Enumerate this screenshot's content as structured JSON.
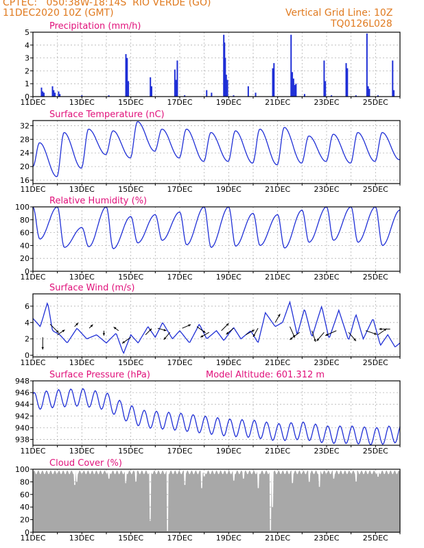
{
  "header": {
    "line1": "CPTEC:   050:38W-18:14S  RIO VERDE (GO)",
    "line2": "11DEC2020 10Z (GMT)",
    "grid_note": "Vertical Grid Line: 10Z",
    "code": "TQ0126L028"
  },
  "colors": {
    "header": "#e07a1f",
    "title": "#e0107a",
    "series": "#1f2fd6",
    "cloud": "#a8a8a8",
    "grid": "#b0b0b0"
  },
  "chart_data": [
    {
      "type": "bar",
      "title": "Precipitation (mm/h)",
      "ylim": [
        0,
        5
      ],
      "yticks": [
        0,
        1,
        2,
        3,
        4,
        5
      ],
      "xticks": [
        "11DEC",
        "13DEC",
        "15DEC",
        "17DEC",
        "19DEC",
        "21DEC",
        "23DEC",
        "25DEC"
      ],
      "x_days": [
        11,
        26
      ],
      "values": [
        {
          "day": 11.35,
          "v": 0.7
        },
        {
          "day": 11.4,
          "v": 0.4
        },
        {
          "day": 11.45,
          "v": 0.3
        },
        {
          "day": 11.8,
          "v": 0.8
        },
        {
          "day": 11.85,
          "v": 0.5
        },
        {
          "day": 11.9,
          "v": 0.3
        },
        {
          "day": 12.05,
          "v": 0.4
        },
        {
          "day": 12.1,
          "v": 0.2
        },
        {
          "day": 13.0,
          "v": 0.1
        },
        {
          "day": 14.1,
          "v": 0.1
        },
        {
          "day": 14.8,
          "v": 3.3
        },
        {
          "day": 14.85,
          "v": 3.0
        },
        {
          "day": 14.9,
          "v": 1.2
        },
        {
          "day": 15.8,
          "v": 1.5
        },
        {
          "day": 15.85,
          "v": 0.8
        },
        {
          "day": 16.8,
          "v": 2.1
        },
        {
          "day": 16.85,
          "v": 1.3
        },
        {
          "day": 16.9,
          "v": 2.8
        },
        {
          "day": 17.2,
          "v": 0.1
        },
        {
          "day": 18.1,
          "v": 0.5
        },
        {
          "day": 18.3,
          "v": 0.3
        },
        {
          "day": 18.8,
          "v": 4.8
        },
        {
          "day": 18.83,
          "v": 4.2
        },
        {
          "day": 18.86,
          "v": 3.0
        },
        {
          "day": 18.9,
          "v": 1.7
        },
        {
          "day": 18.95,
          "v": 1.3
        },
        {
          "day": 19.2,
          "v": 0.1
        },
        {
          "day": 19.8,
          "v": 0.8
        },
        {
          "day": 20.1,
          "v": 0.3
        },
        {
          "day": 20.8,
          "v": 2.2
        },
        {
          "day": 20.85,
          "v": 2.6
        },
        {
          "day": 21.55,
          "v": 4.8
        },
        {
          "day": 21.6,
          "v": 1.9
        },
        {
          "day": 21.65,
          "v": 1.4
        },
        {
          "day": 21.7,
          "v": 0.9
        },
        {
          "day": 21.75,
          "v": 1.0
        },
        {
          "day": 22.1,
          "v": 0.2
        },
        {
          "day": 22.9,
          "v": 2.8
        },
        {
          "day": 22.95,
          "v": 1.2
        },
        {
          "day": 23.2,
          "v": 0.1
        },
        {
          "day": 23.8,
          "v": 2.6
        },
        {
          "day": 23.85,
          "v": 2.2
        },
        {
          "day": 24.2,
          "v": 0.1
        },
        {
          "day": 24.65,
          "v": 4.9
        },
        {
          "day": 24.7,
          "v": 0.8
        },
        {
          "day": 24.75,
          "v": 0.6
        },
        {
          "day": 25.1,
          "v": 0.1
        },
        {
          "day": 25.7,
          "v": 2.8
        },
        {
          "day": 25.75,
          "v": 0.5
        }
      ]
    },
    {
      "type": "line",
      "title": "Surface Temperature (nC)",
      "ylim": [
        15,
        33.5
      ],
      "yticks": [
        16,
        20,
        24,
        28,
        32
      ],
      "xticks": [
        "11DEC",
        "13DEC",
        "15DEC",
        "17DEC",
        "19DEC",
        "21DEC",
        "23DEC",
        "25DEC"
      ],
      "min_hour": 9.5,
      "max_hour": 16.5,
      "daily": [
        {
          "min": 17.0,
          "max": 27.0
        },
        {
          "min": 19.5,
          "max": 30.0
        },
        {
          "min": 23.5,
          "max": 31.0
        },
        {
          "min": 22.5,
          "max": 30.5
        },
        {
          "min": 24.5,
          "max": 33.2
        },
        {
          "min": 22.5,
          "max": 31.0
        },
        {
          "min": 21.5,
          "max": 31.0
        },
        {
          "min": 21.5,
          "max": 30.0
        },
        {
          "min": 21.0,
          "max": 30.5
        },
        {
          "min": 20.5,
          "max": 31.0
        },
        {
          "min": 21.0,
          "max": 31.5
        },
        {
          "min": 21.5,
          "max": 29.0
        },
        {
          "min": 21.0,
          "max": 29.5
        },
        {
          "min": 21.5,
          "max": 30.0
        },
        {
          "min": 22.0,
          "max": 30.0
        },
        {
          "min": 23.0,
          "max": 29.5
        }
      ]
    },
    {
      "type": "line",
      "title": "Relative Humidity (%)",
      "ylim": [
        0,
        100
      ],
      "yticks": [
        0,
        20,
        40,
        60,
        80,
        100
      ],
      "xticks": [
        "11DEC",
        "13DEC",
        "15DEC",
        "17DEC",
        "19DEC",
        "21DEC",
        "23DEC",
        "25DEC"
      ],
      "min_hour": 16.5,
      "max_hour": 7.0,
      "daily": [
        {
          "max": 100,
          "min": 50
        },
        {
          "max": 100,
          "min": 37
        },
        {
          "max": 68,
          "min": 38
        },
        {
          "max": 100,
          "min": 35
        },
        {
          "max": 85,
          "min": 44
        },
        {
          "max": 88,
          "min": 48
        },
        {
          "max": 92,
          "min": 41
        },
        {
          "max": 100,
          "min": 37
        },
        {
          "max": 100,
          "min": 39
        },
        {
          "max": 90,
          "min": 40
        },
        {
          "max": 88,
          "min": 36
        },
        {
          "max": 95,
          "min": 45
        },
        {
          "max": 100,
          "min": 48
        },
        {
          "max": 100,
          "min": 45
        },
        {
          "max": 100,
          "min": 40
        },
        {
          "max": 95,
          "min": 42
        }
      ]
    },
    {
      "type": "line",
      "title": "Surface Wind (m/s)",
      "ylim": [
        -0.2,
        7.5
      ],
      "yticks": [
        0,
        2,
        4,
        6
      ],
      "xticks": [
        "11DEC",
        "13DEC",
        "15DEC",
        "17DEC",
        "19DEC",
        "21DEC",
        "23DEC",
        "25DEC"
      ],
      "speed": [
        {
          "day": 11.0,
          "v": 4.5
        },
        {
          "day": 11.3,
          "v": 3.5
        },
        {
          "day": 11.6,
          "v": 6.5
        },
        {
          "day": 11.8,
          "v": 3.0
        },
        {
          "day": 12.1,
          "v": 2.5
        },
        {
          "day": 12.4,
          "v": 1.5
        },
        {
          "day": 12.8,
          "v": 3.3
        },
        {
          "day": 13.2,
          "v": 2.0
        },
        {
          "day": 13.6,
          "v": 2.5
        },
        {
          "day": 14.0,
          "v": 1.5
        },
        {
          "day": 14.4,
          "v": 2.7
        },
        {
          "day": 14.7,
          "v": 0.2
        },
        {
          "day": 15.0,
          "v": 2.5
        },
        {
          "day": 15.3,
          "v": 1.5
        },
        {
          "day": 15.7,
          "v": 3.5
        },
        {
          "day": 16.0,
          "v": 2.2
        },
        {
          "day": 16.3,
          "v": 4.0
        },
        {
          "day": 16.7,
          "v": 2.0
        },
        {
          "day": 17.0,
          "v": 3.0
        },
        {
          "day": 17.4,
          "v": 1.5
        },
        {
          "day": 17.8,
          "v": 3.8
        },
        {
          "day": 18.1,
          "v": 2.0
        },
        {
          "day": 18.5,
          "v": 3.0
        },
        {
          "day": 18.8,
          "v": 1.8
        },
        {
          "day": 19.2,
          "v": 3.4
        },
        {
          "day": 19.5,
          "v": 2.0
        },
        {
          "day": 19.9,
          "v": 3.0
        },
        {
          "day": 20.2,
          "v": 1.5
        },
        {
          "day": 20.5,
          "v": 5.2
        },
        {
          "day": 20.9,
          "v": 3.5
        },
        {
          "day": 21.2,
          "v": 4.0
        },
        {
          "day": 21.5,
          "v": 6.5
        },
        {
          "day": 21.8,
          "v": 2.5
        },
        {
          "day": 22.1,
          "v": 5.7
        },
        {
          "day": 22.4,
          "v": 2.2
        },
        {
          "day": 22.8,
          "v": 6.0
        },
        {
          "day": 23.1,
          "v": 2.0
        },
        {
          "day": 23.5,
          "v": 5.5
        },
        {
          "day": 23.9,
          "v": 1.8
        },
        {
          "day": 24.2,
          "v": 5.0
        },
        {
          "day": 24.5,
          "v": 2.0
        },
        {
          "day": 24.9,
          "v": 4.5
        },
        {
          "day": 25.2,
          "v": 1.2
        },
        {
          "day": 25.5,
          "v": 2.5
        },
        {
          "day": 25.8,
          "v": 1.0
        },
        {
          "day": 26.0,
          "v": 1.5
        }
      ],
      "arrows": [
        {
          "day": 11.4,
          "v": 2.2,
          "u": 0,
          "w": -1
        },
        {
          "day": 11.7,
          "v": 3.8,
          "u": 0.7,
          "w": -0.7
        },
        {
          "day": 12.0,
          "v": 2.5,
          "u": 0.6,
          "w": 0.4
        },
        {
          "day": 12.7,
          "v": 3.5,
          "u": 0.3,
          "w": 0.3
        },
        {
          "day": 13.3,
          "v": 3.3,
          "u": 0.3,
          "w": 0.3
        },
        {
          "day": 13.9,
          "v": 3.0,
          "u": 0,
          "w": -0.4
        },
        {
          "day": 14.5,
          "v": 3.0,
          "u": -0.4,
          "w": 0.3
        },
        {
          "day": 15.0,
          "v": 2.2,
          "u": -0.7,
          "w": -0.5
        },
        {
          "day": 15.6,
          "v": 2.5,
          "u": 0.5,
          "w": 0.5
        },
        {
          "day": 16.1,
          "v": 3.3,
          "u": 0.7,
          "w": -0.2
        },
        {
          "day": 16.6,
          "v": 2.8,
          "u": -0.5,
          "w": -0.6
        },
        {
          "day": 17.1,
          "v": 3.3,
          "u": 0.7,
          "w": 0.3
        },
        {
          "day": 17.7,
          "v": 3.5,
          "u": 0.7,
          "w": -0.5
        },
        {
          "day": 18.2,
          "v": 2.8,
          "u": -0.7,
          "w": -0.4
        },
        {
          "day": 18.7,
          "v": 3.0,
          "u": 0.6,
          "w": 0.6
        },
        {
          "day": 19.2,
          "v": 3.3,
          "u": -0.6,
          "w": -0.5
        },
        {
          "day": 19.7,
          "v": 2.5,
          "u": 0.7,
          "w": 0.4
        },
        {
          "day": 20.2,
          "v": 3.3,
          "u": -0.4,
          "w": -0.7
        },
        {
          "day": 20.9,
          "v": 4.0,
          "u": 0.4,
          "w": 0.7
        },
        {
          "day": 21.5,
          "v": 3.5,
          "u": 0.4,
          "w": -0.9
        },
        {
          "day": 21.9,
          "v": 2.8,
          "u": -0.8,
          "w": -0.6
        },
        {
          "day": 22.4,
          "v": 3.0,
          "u": 0.3,
          "w": -0.9
        },
        {
          "day": 22.9,
          "v": 2.8,
          "u": -0.6,
          "w": -0.7
        },
        {
          "day": 23.4,
          "v": 3.0,
          "u": -0.9,
          "w": -0.4
        },
        {
          "day": 23.9,
          "v": 2.8,
          "u": 0.6,
          "w": -0.7
        },
        {
          "day": 24.6,
          "v": 3.0,
          "u": 0.9,
          "w": -0.3
        },
        {
          "day": 25.1,
          "v": 2.5,
          "u": 0.7,
          "w": 0.5
        },
        {
          "day": 25.6,
          "v": 3.2,
          "u": -0.9,
          "w": 0
        }
      ]
    },
    {
      "type": "line",
      "title": "Surface Pressure (hPa)",
      "annotation": "Model Altitude: 601.312 m",
      "ylim": [
        937,
        948
      ],
      "yticks": [
        938,
        940,
        942,
        944,
        946,
        948
      ],
      "xticks": [
        "11DEC",
        "13DEC",
        "15DEC",
        "17DEC",
        "19DEC",
        "21DEC",
        "23DEC",
        "25DEC"
      ],
      "baseline": [
        {
          "day": 11.0,
          "v": 944.5
        },
        {
          "day": 12.0,
          "v": 945.0
        },
        {
          "day": 13.0,
          "v": 945.2
        },
        {
          "day": 14.0,
          "v": 944.5
        },
        {
          "day": 14.7,
          "v": 942.8
        },
        {
          "day": 15.5,
          "v": 941.5
        },
        {
          "day": 17.0,
          "v": 941.0
        },
        {
          "day": 18.0,
          "v": 940.5
        },
        {
          "day": 19.0,
          "v": 940.0
        },
        {
          "day": 20.0,
          "v": 939.8
        },
        {
          "day": 21.0,
          "v": 939.2
        },
        {
          "day": 22.0,
          "v": 939.5
        },
        {
          "day": 23.0,
          "v": 938.8
        },
        {
          "day": 24.0,
          "v": 938.8
        },
        {
          "day": 25.0,
          "v": 938.5
        },
        {
          "day": 26.0,
          "v": 939.0
        }
      ],
      "semidiurnal_amplitude": 1.5
    },
    {
      "type": "bar",
      "title": "Cloud Cover (%)",
      "ylim": [
        0,
        100
      ],
      "yticks": [
        0,
        20,
        40,
        60,
        80,
        100
      ],
      "xticks": [
        "11DEC",
        "13DEC",
        "15DEC",
        "17DEC",
        "19DEC",
        "21DEC",
        "23DEC",
        "25DEC"
      ],
      "typical": 95,
      "dips": [
        {
          "day": 12.7,
          "v": 75
        },
        {
          "day": 12.8,
          "v": 80
        },
        {
          "day": 14.1,
          "v": 85
        },
        {
          "day": 14.8,
          "v": 78
        },
        {
          "day": 15.2,
          "v": 80
        },
        {
          "day": 15.8,
          "v": 18
        },
        {
          "day": 16.5,
          "v": 2
        },
        {
          "day": 17.2,
          "v": 75
        },
        {
          "day": 17.9,
          "v": 70
        },
        {
          "day": 18.0,
          "v": 88
        },
        {
          "day": 19.2,
          "v": 82
        },
        {
          "day": 19.6,
          "v": 85
        },
        {
          "day": 20.2,
          "v": 70
        },
        {
          "day": 20.7,
          "v": 3
        },
        {
          "day": 20.8,
          "v": 40
        },
        {
          "day": 21.6,
          "v": 78
        },
        {
          "day": 22.3,
          "v": 80
        },
        {
          "day": 22.7,
          "v": 72
        },
        {
          "day": 23.3,
          "v": 85
        },
        {
          "day": 24.2,
          "v": 80
        },
        {
          "day": 25.1,
          "v": 88
        }
      ]
    }
  ]
}
